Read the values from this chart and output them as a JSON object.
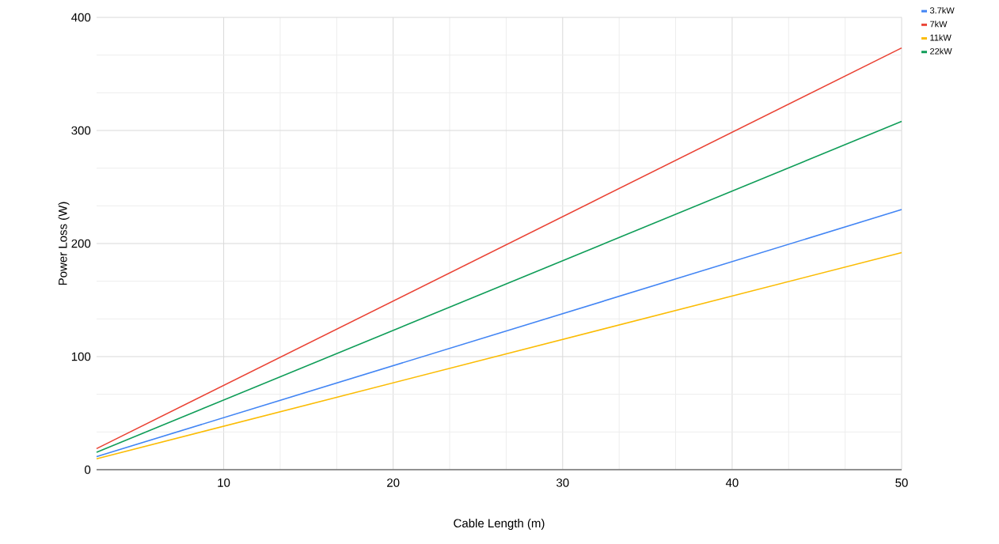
{
  "chart_data": {
    "type": "line",
    "xlabel": "Cable Length (m)",
    "ylabel": "Power Loss (W)",
    "xlim": [
      2.5,
      50
    ],
    "ylim": [
      0,
      400
    ],
    "xticks": [
      10,
      20,
      30,
      40,
      50
    ],
    "yticks": [
      0,
      100,
      200,
      300,
      400
    ],
    "x": [
      2.5,
      50
    ],
    "grid": true,
    "legend": "top right",
    "marker": "none",
    "line_style": "solid",
    "series": [
      {
        "name": "3.7kW",
        "color": "#4285f4",
        "values": [
          11.5,
          230
        ]
      },
      {
        "name": "7kW",
        "color": "#ea4335",
        "values": [
          18.6,
          373
        ]
      },
      {
        "name": "11kW",
        "color": "#fbbc04",
        "values": [
          9.6,
          192
        ]
      },
      {
        "name": "22kW",
        "color": "#0f9d58",
        "values": [
          15.4,
          308
        ]
      }
    ]
  }
}
